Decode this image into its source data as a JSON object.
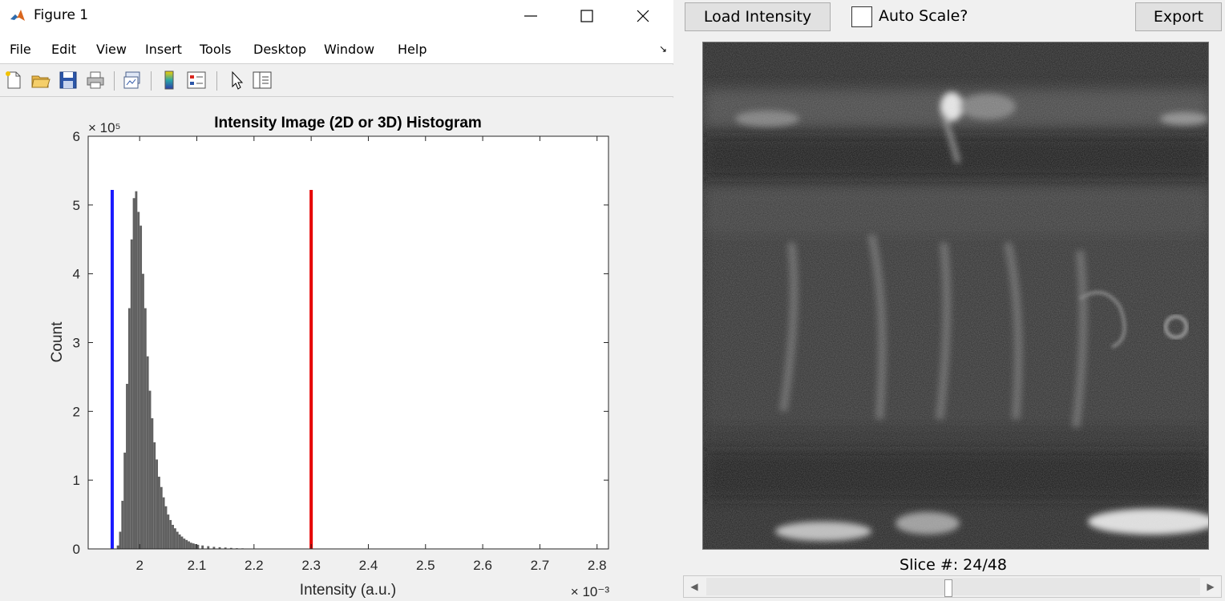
{
  "window": {
    "title": "Figure 1",
    "menu": [
      "File",
      "Edit",
      "View",
      "Insert",
      "Tools",
      "Desktop",
      "Window",
      "Help"
    ]
  },
  "toolbar_icons": [
    "new-figure-icon",
    "open-file-icon",
    "save-icon",
    "print-icon",
    "link-plot-icon",
    "colorbar-icon",
    "legend-icon",
    "pointer-icon",
    "property-editor-icon"
  ],
  "chart_data": {
    "type": "bar",
    "title": "Intensity Image (2D or 3D) Histogram",
    "xlabel": "Intensity (a.u.)",
    "ylabel": "Count",
    "x_exponent": "× 10⁻³",
    "y_exponent": "× 10⁵",
    "xlim": [
      1.91,
      2.82
    ],
    "ylim": [
      0,
      6
    ],
    "x_ticks": [
      "2",
      "2.1",
      "2.2",
      "2.3",
      "2.4",
      "2.5",
      "2.6",
      "2.7",
      "2.8"
    ],
    "y_ticks": [
      "0",
      "1",
      "2",
      "3",
      "4",
      "5",
      "6"
    ],
    "bar_color": "#616161",
    "bins": {
      "x": [
        1.962,
        1.966,
        1.97,
        1.974,
        1.978,
        1.982,
        1.986,
        1.99,
        1.994,
        1.998,
        2.002,
        2.006,
        2.01,
        2.014,
        2.018,
        2.022,
        2.026,
        2.03,
        2.034,
        2.038,
        2.042,
        2.046,
        2.05,
        2.054,
        2.058,
        2.062,
        2.066,
        2.07,
        2.074,
        2.078,
        2.082,
        2.086,
        2.09,
        2.094,
        2.098,
        2.102,
        2.11,
        2.12,
        2.13,
        2.14,
        2.15,
        2.16,
        2.17,
        2.18,
        2.19,
        2.2
      ],
      "values": [
        0.05,
        0.25,
        0.7,
        1.4,
        2.4,
        3.5,
        4.5,
        5.1,
        5.2,
        4.9,
        4.7,
        4.0,
        3.5,
        2.8,
        2.3,
        1.9,
        1.55,
        1.3,
        1.05,
        0.9,
        0.75,
        0.62,
        0.5,
        0.42,
        0.35,
        0.3,
        0.25,
        0.21,
        0.18,
        0.15,
        0.13,
        0.11,
        0.09,
        0.08,
        0.07,
        0.06,
        0.05,
        0.04,
        0.03,
        0.025,
        0.02,
        0.015,
        0.01,
        0.008,
        0.005,
        0.003
      ],
      "width": 0.004
    },
    "markers": [
      {
        "x": 1.952,
        "y_max": 5.22,
        "color": "#1a1aff"
      },
      {
        "x": 2.3,
        "y_max": 5.22,
        "color": "#e60000"
      }
    ]
  },
  "viewer": {
    "load_button": "Load Intensity",
    "auto_scale_label": "Auto Scale?",
    "auto_scale_checked": false,
    "export_button": "Export",
    "slice_label": "Slice #: 24/48",
    "slice_current": 24,
    "slice_total": 48
  }
}
